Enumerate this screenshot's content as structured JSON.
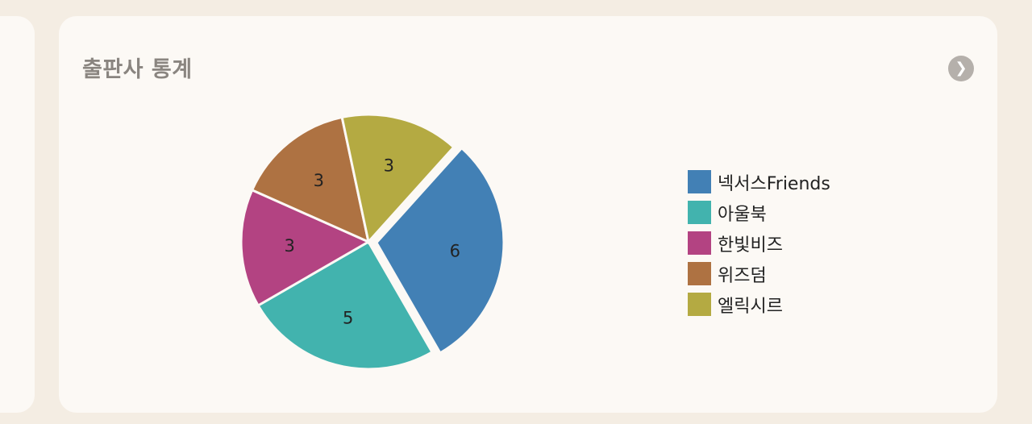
{
  "card": {
    "title": "출판사 통계"
  },
  "nav": {
    "left_icon": "chevron-right-icon",
    "right_icon": "chevron-right-icon"
  },
  "chart_data": {
    "type": "pie",
    "title": "출판사 통계",
    "legend_position": "right",
    "slices": [
      {
        "label": "넥서스Friends",
        "value": 6,
        "color": "#4280b5"
      },
      {
        "label": "아울북",
        "value": 5,
        "color": "#42b3ae"
      },
      {
        "label": "한빛비즈",
        "value": 3,
        "color": "#b34382"
      },
      {
        "label": "위즈덤",
        "value": 3,
        "color": "#ae7242"
      },
      {
        "label": "엘릭시르",
        "value": 3,
        "color": "#b4aa42"
      }
    ]
  }
}
